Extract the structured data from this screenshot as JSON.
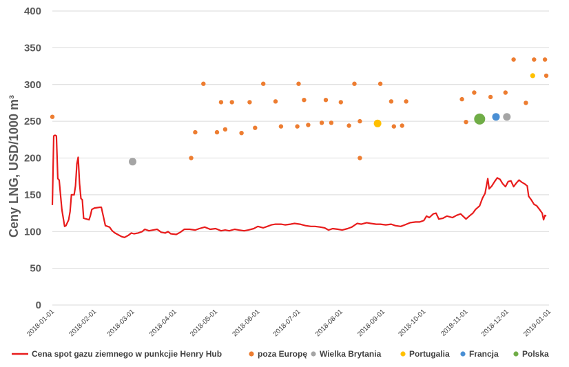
{
  "chart_data": {
    "type": "scatter",
    "title": "",
    "ylabel": "Ceny LNG, USD/1000 m³",
    "xlabel": "",
    "ylim": [
      0,
      400
    ],
    "yticks": [
      0,
      50,
      100,
      150,
      200,
      250,
      300,
      350,
      400
    ],
    "xlim": [
      "2018-01-01",
      "2019-01-01"
    ],
    "xticks": [
      "2018-01-01",
      "2018-02-01",
      "2018-03-01",
      "2018-04-01",
      "2018-05-01",
      "2018-06-01",
      "2018-07-01",
      "2018-08-01",
      "2018-09-01",
      "2018-10-01",
      "2018-11-01",
      "2018-12-01",
      "2019-01-01"
    ],
    "grid": true,
    "legend_position": "bottom",
    "series": [
      {
        "name": "Cena spot gazu ziemnego w punkcjie Henry Hub",
        "kind": "line",
        "color": "#e81c1c",
        "points": [
          [
            "2018-01-01",
            136
          ],
          [
            "2018-01-02",
            230
          ],
          [
            "2018-01-03",
            231
          ],
          [
            "2018-01-04",
            230
          ],
          [
            "2018-01-05",
            172
          ],
          [
            "2018-01-06",
            170
          ],
          [
            "2018-01-08",
            130
          ],
          [
            "2018-01-10",
            107
          ],
          [
            "2018-01-11",
            108
          ],
          [
            "2018-01-13",
            116
          ],
          [
            "2018-01-14",
            127
          ],
          [
            "2018-01-15",
            150
          ],
          [
            "2018-01-17",
            150
          ],
          [
            "2018-01-18",
            162
          ],
          [
            "2018-01-19",
            192
          ],
          [
            "2018-01-20",
            201
          ],
          [
            "2018-01-21",
            165
          ],
          [
            "2018-01-22",
            145
          ],
          [
            "2018-01-23",
            143
          ],
          [
            "2018-01-24",
            118
          ],
          [
            "2018-01-26",
            117
          ],
          [
            "2018-01-28",
            116
          ],
          [
            "2018-01-29",
            122
          ],
          [
            "2018-01-30",
            130
          ],
          [
            "2018-02-01",
            132
          ],
          [
            "2018-02-05",
            133
          ],
          [
            "2018-02-06",
            133
          ],
          [
            "2018-02-08",
            116
          ],
          [
            "2018-02-09",
            108
          ],
          [
            "2018-02-12",
            106
          ],
          [
            "2018-02-14",
            101
          ],
          [
            "2018-02-16",
            98
          ],
          [
            "2018-02-19",
            95
          ],
          [
            "2018-02-21",
            93
          ],
          [
            "2018-02-23",
            92
          ],
          [
            "2018-02-26",
            95
          ],
          [
            "2018-02-28",
            98
          ],
          [
            "2018-03-02",
            97
          ],
          [
            "2018-03-05",
            98
          ],
          [
            "2018-03-08",
            100
          ],
          [
            "2018-03-10",
            103
          ],
          [
            "2018-03-13",
            101
          ],
          [
            "2018-03-16",
            102
          ],
          [
            "2018-03-19",
            103
          ],
          [
            "2018-03-22",
            99
          ],
          [
            "2018-03-25",
            98
          ],
          [
            "2018-03-27",
            100
          ],
          [
            "2018-03-29",
            97
          ],
          [
            "2018-04-02",
            96
          ],
          [
            "2018-04-05",
            99
          ],
          [
            "2018-04-08",
            103
          ],
          [
            "2018-04-12",
            103
          ],
          [
            "2018-04-16",
            102
          ],
          [
            "2018-04-19",
            104
          ],
          [
            "2018-04-23",
            106
          ],
          [
            "2018-04-27",
            103
          ],
          [
            "2018-05-01",
            104
          ],
          [
            "2018-05-05",
            101
          ],
          [
            "2018-05-08",
            102
          ],
          [
            "2018-05-11",
            101
          ],
          [
            "2018-05-15",
            103
          ],
          [
            "2018-05-18",
            102
          ],
          [
            "2018-05-22",
            101
          ],
          [
            "2018-05-25",
            102
          ],
          [
            "2018-05-29",
            104
          ],
          [
            "2018-06-01",
            107
          ],
          [
            "2018-06-05",
            105
          ],
          [
            "2018-06-08",
            107
          ],
          [
            "2018-06-11",
            109
          ],
          [
            "2018-06-14",
            110
          ],
          [
            "2018-06-18",
            110
          ],
          [
            "2018-06-21",
            109
          ],
          [
            "2018-06-25",
            110
          ],
          [
            "2018-06-28",
            111
          ],
          [
            "2018-07-02",
            110
          ],
          [
            "2018-07-06",
            108
          ],
          [
            "2018-07-10",
            107
          ],
          [
            "2018-07-13",
            107
          ],
          [
            "2018-07-17",
            106
          ],
          [
            "2018-07-20",
            105
          ],
          [
            "2018-07-23",
            102
          ],
          [
            "2018-07-26",
            104
          ],
          [
            "2018-07-30",
            103
          ],
          [
            "2018-08-02",
            102
          ],
          [
            "2018-08-06",
            104
          ],
          [
            "2018-08-09",
            106
          ],
          [
            "2018-08-13",
            111
          ],
          [
            "2018-08-16",
            110
          ],
          [
            "2018-08-20",
            112
          ],
          [
            "2018-08-23",
            111
          ],
          [
            "2018-08-27",
            110
          ],
          [
            "2018-08-30",
            110
          ],
          [
            "2018-09-03",
            109
          ],
          [
            "2018-09-07",
            110
          ],
          [
            "2018-09-10",
            108
          ],
          [
            "2018-09-14",
            107
          ],
          [
            "2018-09-17",
            109
          ],
          [
            "2018-09-21",
            112
          ],
          [
            "2018-09-25",
            113
          ],
          [
            "2018-09-28",
            113
          ],
          [
            "2018-10-01",
            115
          ],
          [
            "2018-10-03",
            121
          ],
          [
            "2018-10-05",
            119
          ],
          [
            "2018-10-08",
            124
          ],
          [
            "2018-10-10",
            125
          ],
          [
            "2018-10-12",
            117
          ],
          [
            "2018-10-15",
            118
          ],
          [
            "2018-10-18",
            121
          ],
          [
            "2018-10-22",
            119
          ],
          [
            "2018-10-25",
            122
          ],
          [
            "2018-10-28",
            124
          ],
          [
            "2018-11-01",
            117
          ],
          [
            "2018-11-04",
            122
          ],
          [
            "2018-11-06",
            125
          ],
          [
            "2018-11-08",
            130
          ],
          [
            "2018-11-11",
            135
          ],
          [
            "2018-11-13",
            145
          ],
          [
            "2018-11-15",
            152
          ],
          [
            "2018-11-17",
            172
          ],
          [
            "2018-11-18",
            158
          ],
          [
            "2018-11-20",
            162
          ],
          [
            "2018-11-22",
            168
          ],
          [
            "2018-11-24",
            173
          ],
          [
            "2018-11-26",
            171
          ],
          [
            "2018-11-28",
            165
          ],
          [
            "2018-11-30",
            161
          ],
          [
            "2018-12-02",
            168
          ],
          [
            "2018-12-04",
            169
          ],
          [
            "2018-12-06",
            161
          ],
          [
            "2018-12-08",
            166
          ],
          [
            "2018-12-10",
            170
          ],
          [
            "2018-12-12",
            167
          ],
          [
            "2018-12-14",
            165
          ],
          [
            "2018-12-16",
            162
          ],
          [
            "2018-12-17",
            148
          ],
          [
            "2018-12-19",
            143
          ],
          [
            "2018-12-21",
            137
          ],
          [
            "2018-12-23",
            135
          ],
          [
            "2018-12-25",
            130
          ],
          [
            "2018-12-27",
            125
          ],
          [
            "2018-12-28",
            116
          ],
          [
            "2018-12-29",
            122
          ],
          [
            "2018-12-30",
            121
          ]
        ]
      },
      {
        "name": "poza Europę",
        "kind": "scatter",
        "color": "#ed7d31",
        "size": "small",
        "points": [
          [
            "2018-01-01",
            256
          ],
          [
            "2018-04-13",
            200
          ],
          [
            "2018-04-16",
            235
          ],
          [
            "2018-04-22",
            301
          ],
          [
            "2018-05-02",
            235
          ],
          [
            "2018-05-05",
            276
          ],
          [
            "2018-05-08",
            239
          ],
          [
            "2018-05-13",
            276
          ],
          [
            "2018-05-20",
            234
          ],
          [
            "2018-05-26",
            276
          ],
          [
            "2018-05-30",
            241
          ],
          [
            "2018-06-05",
            301
          ],
          [
            "2018-06-14",
            277
          ],
          [
            "2018-06-18",
            243
          ],
          [
            "2018-06-30",
            243
          ],
          [
            "2018-07-01",
            301
          ],
          [
            "2018-07-05",
            279
          ],
          [
            "2018-07-08",
            245
          ],
          [
            "2018-07-18",
            248
          ],
          [
            "2018-07-21",
            279
          ],
          [
            "2018-07-25",
            248
          ],
          [
            "2018-08-01",
            276
          ],
          [
            "2018-08-07",
            244
          ],
          [
            "2018-08-11",
            301
          ],
          [
            "2018-08-15",
            250
          ],
          [
            "2018-08-15",
            200
          ],
          [
            "2018-08-30",
            301
          ],
          [
            "2018-09-07",
            277
          ],
          [
            "2018-09-09",
            243
          ],
          [
            "2018-09-15",
            244
          ],
          [
            "2018-09-18",
            277
          ],
          [
            "2018-10-29",
            280
          ],
          [
            "2018-11-01",
            249
          ],
          [
            "2018-11-07",
            289
          ],
          [
            "2018-11-19",
            283
          ],
          [
            "2018-11-30",
            289
          ],
          [
            "2018-12-06",
            334
          ],
          [
            "2018-12-15",
            275
          ],
          [
            "2018-12-21",
            334
          ],
          [
            "2018-12-29",
            334
          ],
          [
            "2018-12-30",
            312
          ]
        ]
      },
      {
        "name": "Wielka Brytania",
        "kind": "scatter",
        "color": "#a5a5a5",
        "points": [
          [
            "2018-03-01",
            195
          ],
          [
            "2018-12-01",
            256
          ]
        ]
      },
      {
        "name": "Portugalia",
        "kind": "scatter",
        "color": "#ffc000",
        "points": [
          [
            "2018-08-28",
            247
          ],
          [
            "2018-12-20",
            312
          ]
        ]
      },
      {
        "name": "Francja",
        "kind": "scatter",
        "color": "#4a8fd4",
        "points": [
          [
            "2018-11-23",
            256
          ]
        ]
      },
      {
        "name": "Polska",
        "kind": "scatter",
        "color": "#70ad47",
        "points": [
          [
            "2018-11-11",
            253
          ]
        ]
      }
    ]
  }
}
